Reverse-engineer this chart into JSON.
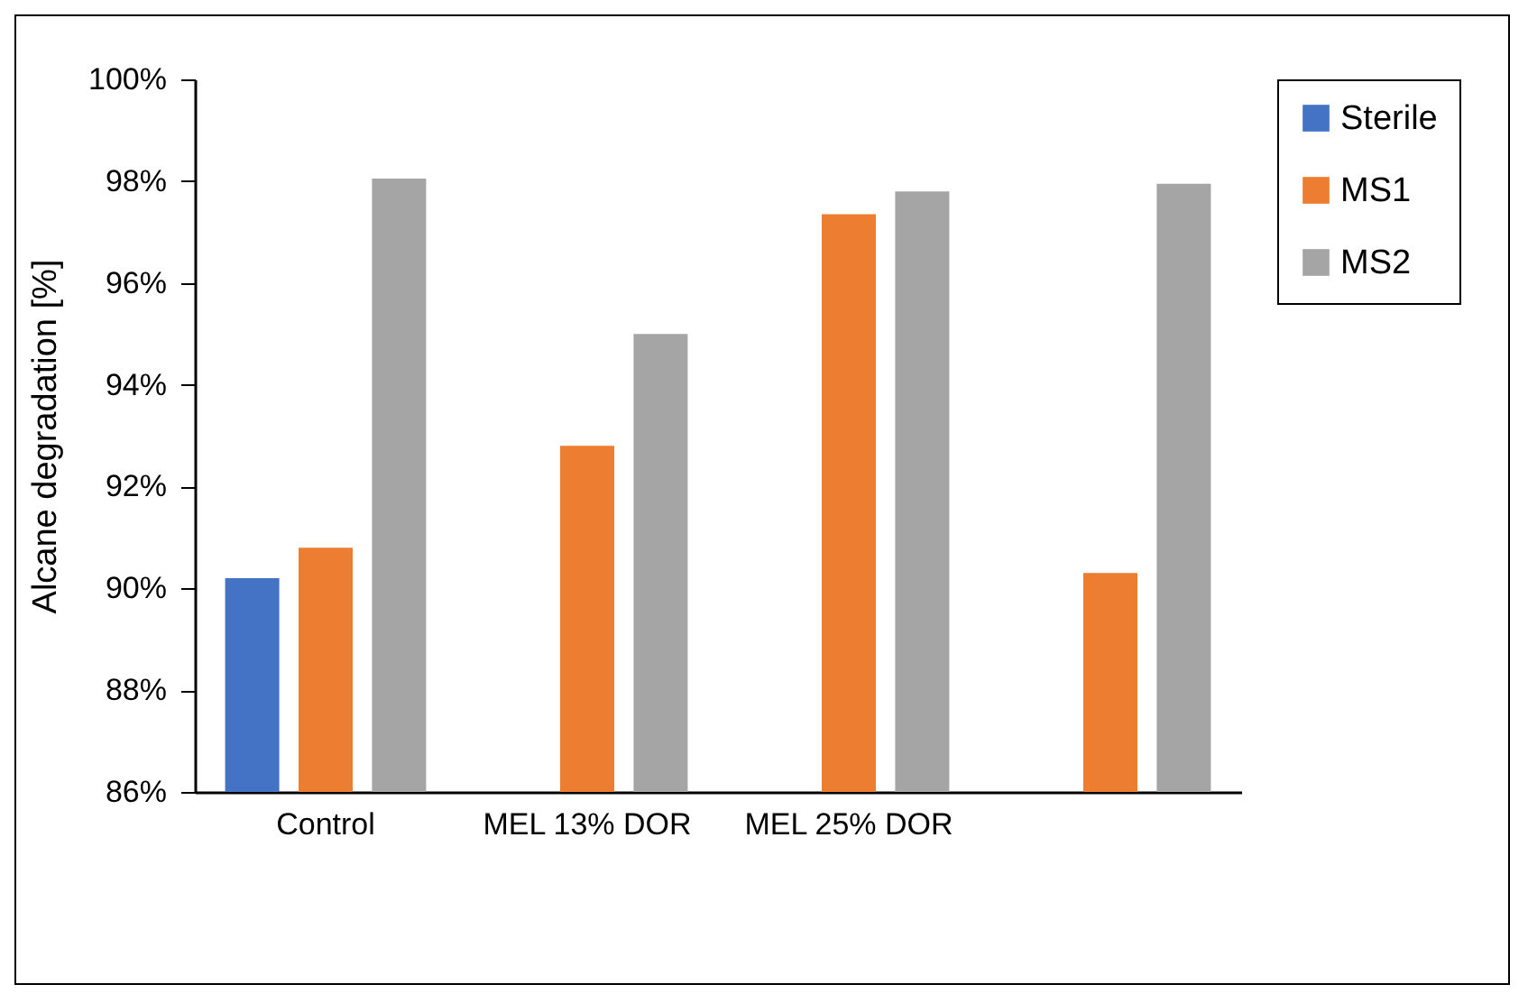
{
  "chart_data": {
    "type": "bar",
    "ylabel": "Alcane degradation [%]",
    "categories": [
      "Control",
      "MEL 13% DOR",
      "MEL 25% DOR",
      null
    ],
    "series": [
      {
        "name": "Sterile",
        "color": "#4472c4",
        "values": [
          90.2,
          null,
          null,
          null
        ]
      },
      {
        "name": "MS1",
        "color": "#ed7d31",
        "values": [
          90.8,
          92.8,
          97.35,
          90.3
        ]
      },
      {
        "name": "MS2",
        "color": "#a5a5a5",
        "values": [
          98.05,
          95.0,
          97.8,
          97.95
        ]
      }
    ],
    "ylim": [
      86,
      100
    ],
    "yticks": [
      {
        "value": 86,
        "label": "86%"
      },
      {
        "value": 88,
        "label": "88%"
      },
      {
        "value": 90,
        "label": "90%"
      },
      {
        "value": 92,
        "label": "92%"
      },
      {
        "value": 94,
        "label": "94%"
      },
      {
        "value": 96,
        "label": "96%"
      },
      {
        "value": 98,
        "label": "98%"
      },
      {
        "value": 100,
        "label": "100%"
      }
    ],
    "grid": false,
    "legend": "right"
  }
}
